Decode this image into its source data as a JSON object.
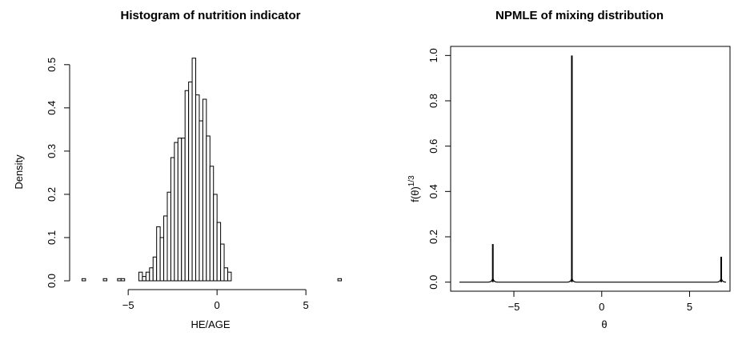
{
  "chart_data": [
    {
      "type": "bar",
      "title": "Histogram of nutrition indicator",
      "xlabel": "HE/AGE",
      "ylabel": "Density",
      "xlim": [
        -7.8,
        7.2
      ],
      "ylim": [
        0,
        0.52
      ],
      "x_ticks": [
        -5,
        0,
        5
      ],
      "y_ticks": [
        0.0,
        0.1,
        0.2,
        0.3,
        0.4,
        0.5
      ],
      "x_tick_labels": [
        "−5",
        "0",
        "5"
      ],
      "y_tick_labels": [
        "0.0",
        "0.1",
        "0.2",
        "0.3",
        "0.4",
        "0.5"
      ],
      "bin_width": 0.2,
      "bins": [
        {
          "x": -7.6,
          "value": 0.005
        },
        {
          "x": -6.4,
          "value": 0.005
        },
        {
          "x": -5.6,
          "value": 0.005
        },
        {
          "x": -5.4,
          "value": 0.005
        },
        {
          "x": -4.4,
          "value": 0.02
        },
        {
          "x": -4.2,
          "value": 0.01
        },
        {
          "x": -4.0,
          "value": 0.02
        },
        {
          "x": -3.8,
          "value": 0.03
        },
        {
          "x": -3.6,
          "value": 0.055
        },
        {
          "x": -3.4,
          "value": 0.125
        },
        {
          "x": -3.2,
          "value": 0.1
        },
        {
          "x": -3.0,
          "value": 0.15
        },
        {
          "x": -2.8,
          "value": 0.205
        },
        {
          "x": -2.6,
          "value": 0.285
        },
        {
          "x": -2.4,
          "value": 0.32
        },
        {
          "x": -2.2,
          "value": 0.33
        },
        {
          "x": -2.0,
          "value": 0.33
        },
        {
          "x": -1.8,
          "value": 0.44
        },
        {
          "x": -1.6,
          "value": 0.46
        },
        {
          "x": -1.4,
          "value": 0.515
        },
        {
          "x": -1.2,
          "value": 0.43
        },
        {
          "x": -1.0,
          "value": 0.37
        },
        {
          "x": -0.8,
          "value": 0.42
        },
        {
          "x": -0.6,
          "value": 0.335
        },
        {
          "x": -0.4,
          "value": 0.265
        },
        {
          "x": -0.2,
          "value": 0.2
        },
        {
          "x": 0.0,
          "value": 0.135
        },
        {
          "x": 0.2,
          "value": 0.085
        },
        {
          "x": 0.4,
          "value": 0.03
        },
        {
          "x": 0.6,
          "value": 0.02
        },
        {
          "x": 6.8,
          "value": 0.005
        }
      ]
    },
    {
      "type": "line",
      "title": "NPMLE of mixing distribution",
      "xlabel": "θ",
      "ylabel": "f(θ)",
      "ylabel_superscript": "1/3",
      "xlim": [
        -8.6,
        7.3
      ],
      "ylim": [
        -0.04,
        1.04
      ],
      "x_ticks": [
        -5,
        0,
        5
      ],
      "y_ticks": [
        0.0,
        0.2,
        0.4,
        0.6,
        0.8,
        1.0
      ],
      "x_tick_labels": [
        "−5",
        "0",
        "5"
      ],
      "y_tick_labels": [
        "0.0",
        "0.2",
        "0.4",
        "0.6",
        "0.8",
        "1.0"
      ],
      "baseline": 0.0,
      "curve_x_range": [
        -8.1,
        7.0
      ],
      "spikes": [
        {
          "x": -6.2,
          "height": 0.168
        },
        {
          "x": -1.7,
          "height": 1.0
        },
        {
          "x": 6.8,
          "height": 0.112
        }
      ]
    }
  ]
}
